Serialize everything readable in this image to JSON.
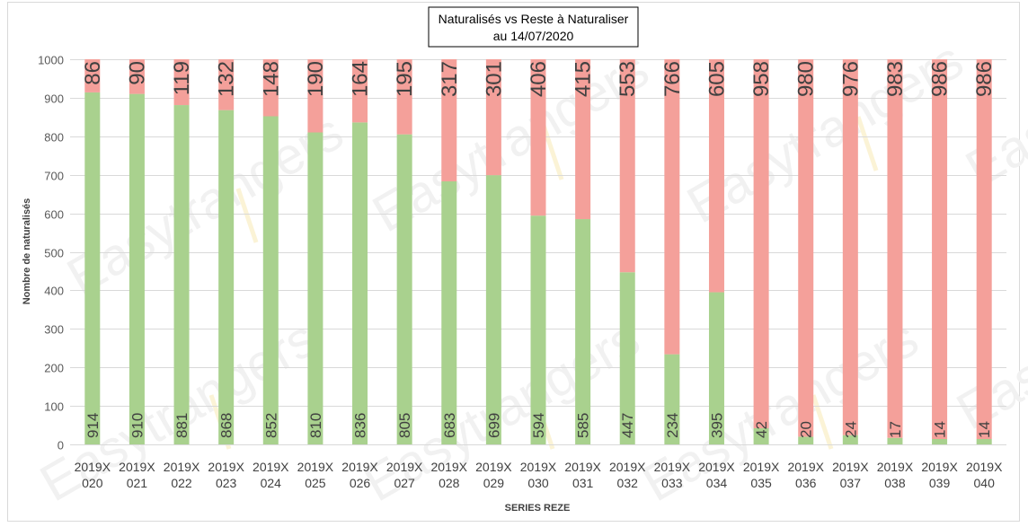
{
  "chart_data": {
    "type": "bar",
    "stacked": true,
    "title_lines": [
      "Naturalisés vs Reste à Naturaliser",
      "au 14/07/2020"
    ],
    "xlabel": "SERIES REZE",
    "ylabel": "Nombre de naturalisés",
    "ylim": [
      0,
      1000
    ],
    "yticks": [
      0,
      100,
      200,
      300,
      400,
      500,
      600,
      700,
      800,
      900,
      1000
    ],
    "grid": true,
    "legend": "none",
    "categories": [
      [
        "2019X",
        "020"
      ],
      [
        "2019X",
        "021"
      ],
      [
        "2019X",
        "022"
      ],
      [
        "2019X",
        "023"
      ],
      [
        "2019X",
        "024"
      ],
      [
        "2019X",
        "025"
      ],
      [
        "2019X",
        "026"
      ],
      [
        "2019X",
        "027"
      ],
      [
        "2019X",
        "028"
      ],
      [
        "2019X",
        "029"
      ],
      [
        "2019X",
        "030"
      ],
      [
        "2019X",
        "031"
      ],
      [
        "2019X",
        "032"
      ],
      [
        "2019X",
        "033"
      ],
      [
        "2019X",
        "034"
      ],
      [
        "2019X",
        "035"
      ],
      [
        "2019X",
        "036"
      ],
      [
        "2019X",
        "037"
      ],
      [
        "2019X",
        "038"
      ],
      [
        "2019X",
        "039"
      ],
      [
        "2019X",
        "040"
      ]
    ],
    "series": [
      {
        "color": "#a9d18e",
        "values": [
          914,
          910,
          881,
          868,
          852,
          810,
          836,
          805,
          683,
          699,
          594,
          585,
          447,
          234,
          395,
          42,
          20,
          24,
          17,
          14,
          14
        ]
      },
      {
        "color": "#f4a09a",
        "values": [
          86,
          90,
          119,
          132,
          148,
          190,
          164,
          195,
          317,
          301,
          406,
          415,
          553,
          766,
          605,
          958,
          980,
          976,
          983,
          986,
          986
        ]
      }
    ]
  },
  "watermark": {
    "text": "Easytrangers"
  }
}
